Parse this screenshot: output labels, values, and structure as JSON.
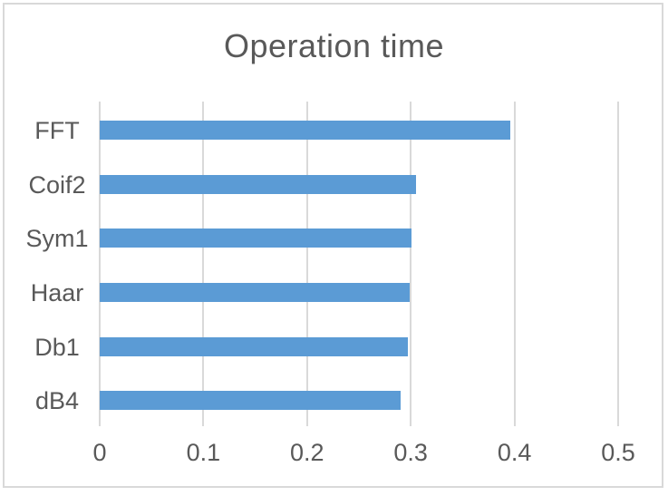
{
  "chart_data": {
    "type": "bar",
    "orientation": "horizontal",
    "title": "Operation time",
    "categories": [
      "FFT",
      "Coif2",
      "Sym1",
      "Haar",
      "Db1",
      "dB4"
    ],
    "values": [
      0.396,
      0.305,
      0.301,
      0.299,
      0.297,
      0.29
    ],
    "xlabel": "",
    "ylabel": "",
    "xlim": [
      0,
      0.5
    ],
    "xticks": [
      0,
      0.1,
      0.2,
      0.3,
      0.4,
      0.5
    ],
    "xtick_labels": [
      "0",
      "0.1",
      "0.2",
      "0.3",
      "0.4",
      "0.5"
    ],
    "grid": true,
    "legend": false,
    "colors": {
      "bar": "#5B9BD5",
      "gridline": "#D9D9D9",
      "text": "#595959",
      "border": "#D9D9D9",
      "background": "#FFFFFF"
    }
  }
}
